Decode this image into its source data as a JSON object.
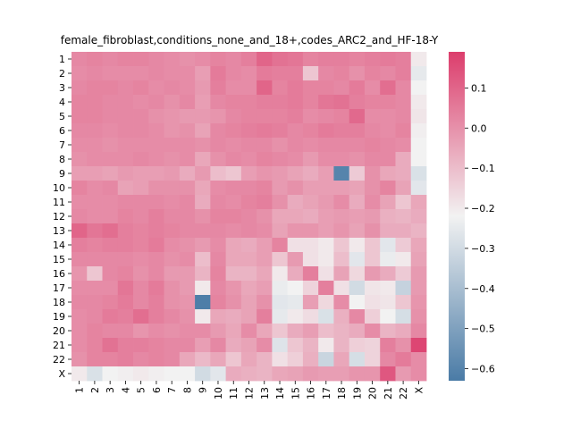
{
  "chart_data": {
    "type": "heatmap",
    "title": "female_fibroblast,conditions_none_and_18+,codes_ARC2_and_HF-18-Y",
    "x_labels": [
      "1",
      "2",
      "3",
      "4",
      "5",
      "6",
      "7",
      "8",
      "9",
      "10",
      "11",
      "12",
      "13",
      "14",
      "15",
      "16",
      "17",
      "18",
      "19",
      "20",
      "21",
      "22",
      "X"
    ],
    "y_labels": [
      "1",
      "2",
      "3",
      "4",
      "5",
      "6",
      "7",
      "8",
      "9",
      "10",
      "11",
      "12",
      "13",
      "14",
      "15",
      "16",
      "17",
      "18",
      "19",
      "20",
      "21",
      "22",
      "X"
    ],
    "colorbar": {
      "min": -0.63,
      "max": 0.19,
      "ticks": [
        0.1,
        0.0,
        -0.1,
        -0.2,
        -0.3,
        -0.4,
        -0.5,
        -0.6
      ],
      "tick_labels": [
        "0.1",
        "0.0",
        "−0.1",
        "−0.2",
        "−0.3",
        "−0.4",
        "−0.5",
        "−0.6"
      ],
      "colors": {
        "low": "#4a7ba6",
        "mid": "#f2f2f2",
        "high": "#dc3d6c"
      }
    },
    "values": [
      [
        0.02,
        0.03,
        0.02,
        0.03,
        0.03,
        0.02,
        0.01,
        0.0,
        0.01,
        0.03,
        0.02,
        0.04,
        0.1,
        0.07,
        0.06,
        0.03,
        0.04,
        0.04,
        0.03,
        0.04,
        0.05,
        0.04,
        -0.2
      ],
      [
        0.01,
        0.02,
        0.01,
        0.01,
        0.01,
        0.02,
        0.01,
        0.01,
        -0.03,
        0.05,
        0.02,
        0.01,
        0.05,
        0.04,
        0.04,
        -0.12,
        0.02,
        0.03,
        0.0,
        0.03,
        0.02,
        0.04,
        -0.25
      ],
      [
        0.02,
        0.03,
        0.03,
        0.02,
        0.03,
        0.01,
        0.02,
        0.01,
        -0.02,
        0.04,
        0.01,
        0.01,
        0.1,
        0.03,
        0.05,
        0.03,
        0.03,
        0.02,
        0.05,
        0.01,
        0.08,
        0.02,
        -0.22
      ],
      [
        0.03,
        0.03,
        0.02,
        0.02,
        0.01,
        0.02,
        0.0,
        0.02,
        -0.03,
        0.02,
        0.03,
        0.03,
        0.04,
        0.04,
        0.05,
        0.03,
        0.06,
        0.07,
        0.04,
        0.03,
        0.03,
        0.02,
        -0.2
      ],
      [
        0.03,
        0.03,
        0.02,
        0.02,
        0.02,
        0.0,
        -0.01,
        -0.02,
        -0.02,
        -0.01,
        0.02,
        0.03,
        0.03,
        0.03,
        0.04,
        0.01,
        0.02,
        0.03,
        0.09,
        0.01,
        0.01,
        0.02,
        -0.19
      ],
      [
        0.02,
        0.02,
        0.01,
        0.02,
        0.02,
        0.01,
        -0.01,
        0.0,
        -0.04,
        0.02,
        0.03,
        0.04,
        0.05,
        0.04,
        0.02,
        0.03,
        0.05,
        0.04,
        0.04,
        0.02,
        0.01,
        0.03,
        -0.21
      ],
      [
        0.01,
        0.01,
        0.0,
        0.01,
        0.01,
        0.01,
        0.01,
        0.01,
        0.0,
        0.02,
        0.01,
        0.02,
        0.02,
        0.0,
        0.02,
        0.01,
        0.02,
        0.02,
        0.02,
        0.03,
        0.02,
        0.01,
        -0.22
      ],
      [
        0.0,
        0.01,
        0.01,
        0.01,
        0.02,
        0.01,
        0.0,
        0.01,
        -0.05,
        0.0,
        0.02,
        0.01,
        0.03,
        0.02,
        0.01,
        -0.02,
        0.01,
        0.01,
        0.0,
        0.02,
        0.02,
        -0.06,
        -0.22
      ],
      [
        -0.03,
        -0.03,
        -0.04,
        -0.02,
        -0.03,
        -0.03,
        -0.02,
        -0.06,
        -0.02,
        -0.1,
        -0.12,
        -0.03,
        -0.01,
        -0.02,
        -0.04,
        -0.06,
        -0.03,
        -0.6,
        -0.13,
        0.0,
        -0.05,
        -0.06,
        -0.28
      ],
      [
        0.03,
        0.01,
        0.02,
        -0.04,
        -0.03,
        0.0,
        0.0,
        0.0,
        -0.05,
        0.01,
        0.02,
        0.02,
        0.03,
        -0.02,
        0.0,
        -0.03,
        -0.03,
        -0.03,
        -0.04,
        0.0,
        0.03,
        -0.04,
        -0.26
      ],
      [
        0.01,
        0.01,
        0.01,
        0.02,
        0.02,
        0.02,
        0.01,
        0.02,
        -0.06,
        0.02,
        0.01,
        0.03,
        0.04,
        0.0,
        -0.06,
        -0.04,
        -0.02,
        0.01,
        -0.06,
        0.01,
        -0.04,
        -0.12,
        -0.05
      ],
      [
        0.02,
        0.01,
        0.01,
        0.03,
        0.02,
        0.04,
        0.02,
        0.02,
        0.0,
        0.03,
        0.03,
        0.02,
        0.0,
        -0.05,
        -0.05,
        -0.06,
        -0.03,
        -0.02,
        -0.03,
        -0.02,
        -0.07,
        -0.08,
        -0.06
      ],
      [
        0.1,
        0.06,
        0.08,
        0.04,
        0.03,
        0.04,
        0.03,
        0.02,
        0.02,
        0.02,
        0.01,
        0.02,
        0.01,
        -0.04,
        -0.01,
        -0.01,
        -0.03,
        -0.01,
        -0.04,
        0.0,
        -0.06,
        -0.06,
        -0.08
      ],
      [
        0.04,
        0.03,
        0.04,
        0.04,
        0.03,
        0.05,
        0.01,
        0.0,
        -0.02,
        0.01,
        -0.05,
        -0.06,
        -0.03,
        0.03,
        -0.18,
        -0.18,
        -0.2,
        -0.12,
        -0.2,
        -0.12,
        -0.26,
        -0.13,
        -0.05
      ],
      [
        0.02,
        0.02,
        0.02,
        0.02,
        0.01,
        0.02,
        0.0,
        0.01,
        -0.1,
        0.02,
        -0.05,
        -0.05,
        -0.03,
        -0.12,
        -0.02,
        -0.18,
        -0.2,
        -0.1,
        -0.26,
        -0.12,
        -0.24,
        -0.2,
        -0.04
      ],
      [
        -0.01,
        -0.12,
        0.02,
        0.03,
        0.0,
        0.02,
        -0.02,
        -0.02,
        -0.08,
        0.03,
        -0.08,
        -0.08,
        -0.05,
        -0.2,
        -0.06,
        0.04,
        -0.18,
        -0.04,
        -0.16,
        -0.02,
        -0.06,
        -0.13,
        -0.02
      ],
      [
        0.01,
        0.01,
        0.01,
        0.06,
        0.02,
        0.05,
        0.0,
        -0.02,
        -0.2,
        0.02,
        -0.01,
        -0.05,
        -0.03,
        -0.24,
        -0.22,
        -0.15,
        0.04,
        -0.18,
        -0.3,
        -0.19,
        -0.2,
        -0.33,
        -0.02
      ],
      [
        0.02,
        0.02,
        0.03,
        0.05,
        0.02,
        0.04,
        0.0,
        -0.01,
        -0.62,
        0.03,
        0.0,
        -0.04,
        0.0,
        -0.26,
        -0.25,
        -0.03,
        -0.16,
        0.01,
        -0.22,
        -0.18,
        -0.19,
        -0.12,
        -0.01
      ],
      [
        0.01,
        0.02,
        0.05,
        0.04,
        0.08,
        0.04,
        0.02,
        0.0,
        -0.2,
        -0.05,
        -0.06,
        -0.04,
        0.04,
        -0.25,
        -0.2,
        -0.17,
        -0.28,
        -0.07,
        0.02,
        -0.14,
        -0.22,
        -0.29,
        0.0
      ],
      [
        0.01,
        0.03,
        0.02,
        0.02,
        -0.01,
        0.01,
        0.0,
        0.01,
        0.01,
        -0.02,
        -0.05,
        0.01,
        -0.05,
        -0.12,
        -0.06,
        -0.03,
        -0.1,
        -0.08,
        -0.06,
        0.01,
        -0.08,
        -0.06,
        0.02
      ],
      [
        0.01,
        0.03,
        0.07,
        0.04,
        0.04,
        0.03,
        0.02,
        0.02,
        -0.03,
        0.02,
        -0.06,
        -0.04,
        0.01,
        -0.27,
        -0.12,
        -0.08,
        -0.2,
        -0.08,
        -0.14,
        -0.15,
        0.04,
        0.0,
        0.17
      ],
      [
        0.0,
        0.03,
        0.03,
        0.04,
        0.02,
        0.03,
        0.02,
        -0.05,
        -0.09,
        -0.05,
        -0.12,
        -0.05,
        -0.08,
        -0.18,
        -0.14,
        -0.07,
        -0.32,
        -0.05,
        -0.29,
        -0.15,
        0.02,
        0.05,
        0.01
      ],
      [
        -0.2,
        -0.28,
        -0.22,
        -0.21,
        -0.2,
        -0.21,
        -0.22,
        -0.22,
        -0.3,
        -0.26,
        -0.06,
        -0.07,
        -0.08,
        -0.05,
        -0.04,
        -0.02,
        -0.03,
        -0.03,
        -0.01,
        -0.01,
        0.13,
        -0.02,
        0.01
      ]
    ]
  }
}
